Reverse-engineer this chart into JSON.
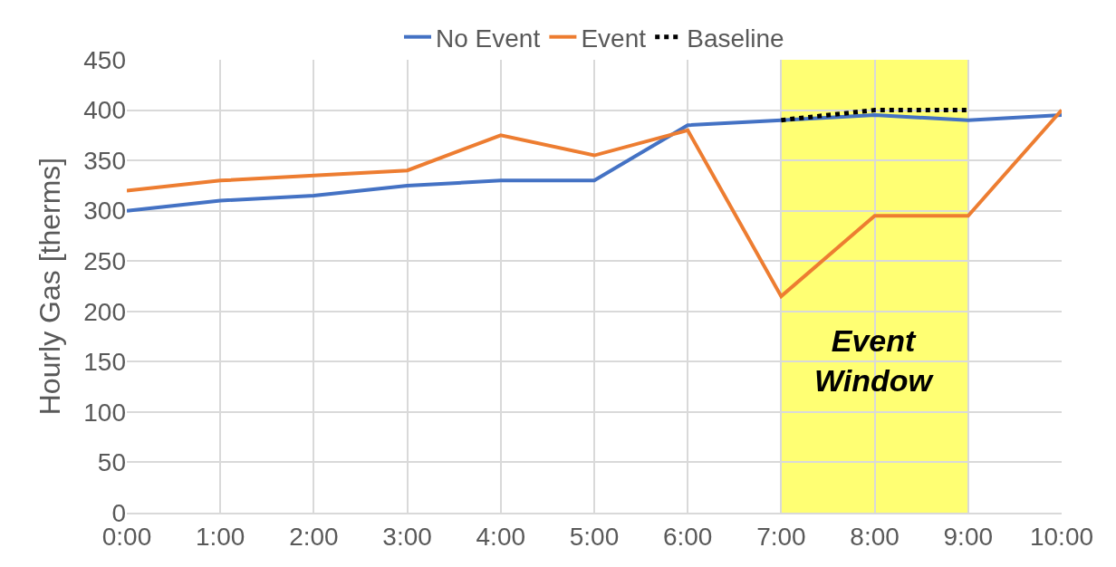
{
  "chart_data": {
    "type": "line",
    "ylabel": "Hourly Gas [therms]",
    "x": [
      0,
      1,
      2,
      3,
      4,
      5,
      6,
      7,
      8,
      9,
      10
    ],
    "series": [
      {
        "name": "No Event",
        "color": "#4472c4",
        "values": [
          300,
          310,
          315,
          325,
          330,
          330,
          385,
          390,
          395,
          390,
          395
        ]
      },
      {
        "name": "Event",
        "color": "#ed7d31",
        "values": [
          320,
          330,
          335,
          340,
          375,
          355,
          380,
          215,
          295,
          295,
          400
        ]
      },
      {
        "name": "Baseline",
        "color": "#000000",
        "line_style": "dotted",
        "x": [
          7,
          8,
          9
        ],
        "values": [
          390,
          400,
          400
        ]
      }
    ],
    "xlim": [
      0,
      10
    ],
    "xticks": [
      {
        "value": 0,
        "label": "0:00"
      },
      {
        "value": 1,
        "label": "1:00"
      },
      {
        "value": 2,
        "label": "2:00"
      },
      {
        "value": 3,
        "label": "3:00"
      },
      {
        "value": 4,
        "label": "4:00"
      },
      {
        "value": 5,
        "label": "5:00"
      },
      {
        "value": 6,
        "label": "6:00"
      },
      {
        "value": 7,
        "label": "7:00"
      },
      {
        "value": 8,
        "label": "8:00"
      },
      {
        "value": 9,
        "label": "9:00"
      },
      {
        "value": 10,
        "label": "10:00"
      }
    ],
    "ylim": [
      0,
      450
    ],
    "yticks": [
      0,
      50,
      100,
      150,
      200,
      250,
      300,
      350,
      400,
      450
    ],
    "bands": [
      {
        "axis": "x",
        "from": 7,
        "to": 9,
        "label": "Event Window",
        "color": "#ffff00"
      }
    ],
    "grid": true,
    "legend": "top",
    "marker": "none",
    "line_style": "solid"
  }
}
